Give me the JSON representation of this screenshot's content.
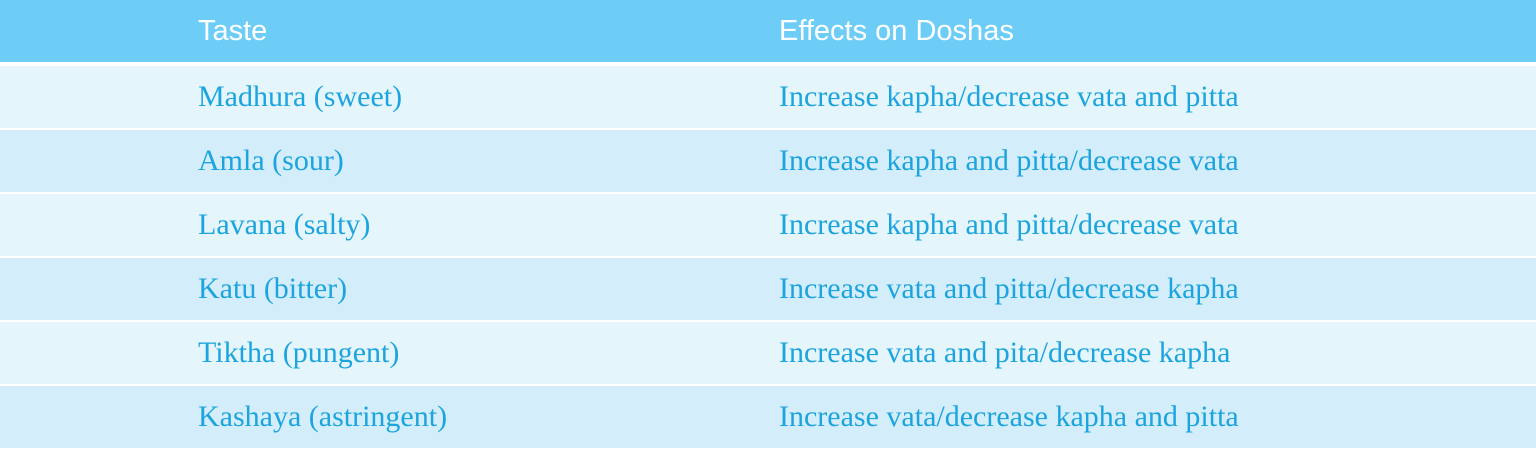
{
  "header": {
    "taste": "Taste",
    "effects": "Effects on Doshas"
  },
  "rows": [
    {
      "taste": "Madhura (sweet)",
      "effect": "Increase kapha/decrease vata and pitta"
    },
    {
      "taste": "Amla (sour)",
      "effect": "Increase kapha and pitta/decrease vata"
    },
    {
      "taste": "Lavana (salty)",
      "effect": "Increase kapha and pitta/decrease vata"
    },
    {
      "taste": "Katu (bitter)",
      "effect": "Increase vata and pitta/decrease kapha"
    },
    {
      "taste": "Tiktha (pungent)",
      "effect": "Increase vata and pita/decrease kapha"
    },
    {
      "taste": "Kashaya (astringent)",
      "effect": "Increase vata/decrease kapha and pitta"
    }
  ],
  "colors": {
    "header_bg": "#6dcdf7",
    "row_light": "#e5f5fc",
    "row_dark": "#d4edfa",
    "text": "#1ba4dd"
  }
}
